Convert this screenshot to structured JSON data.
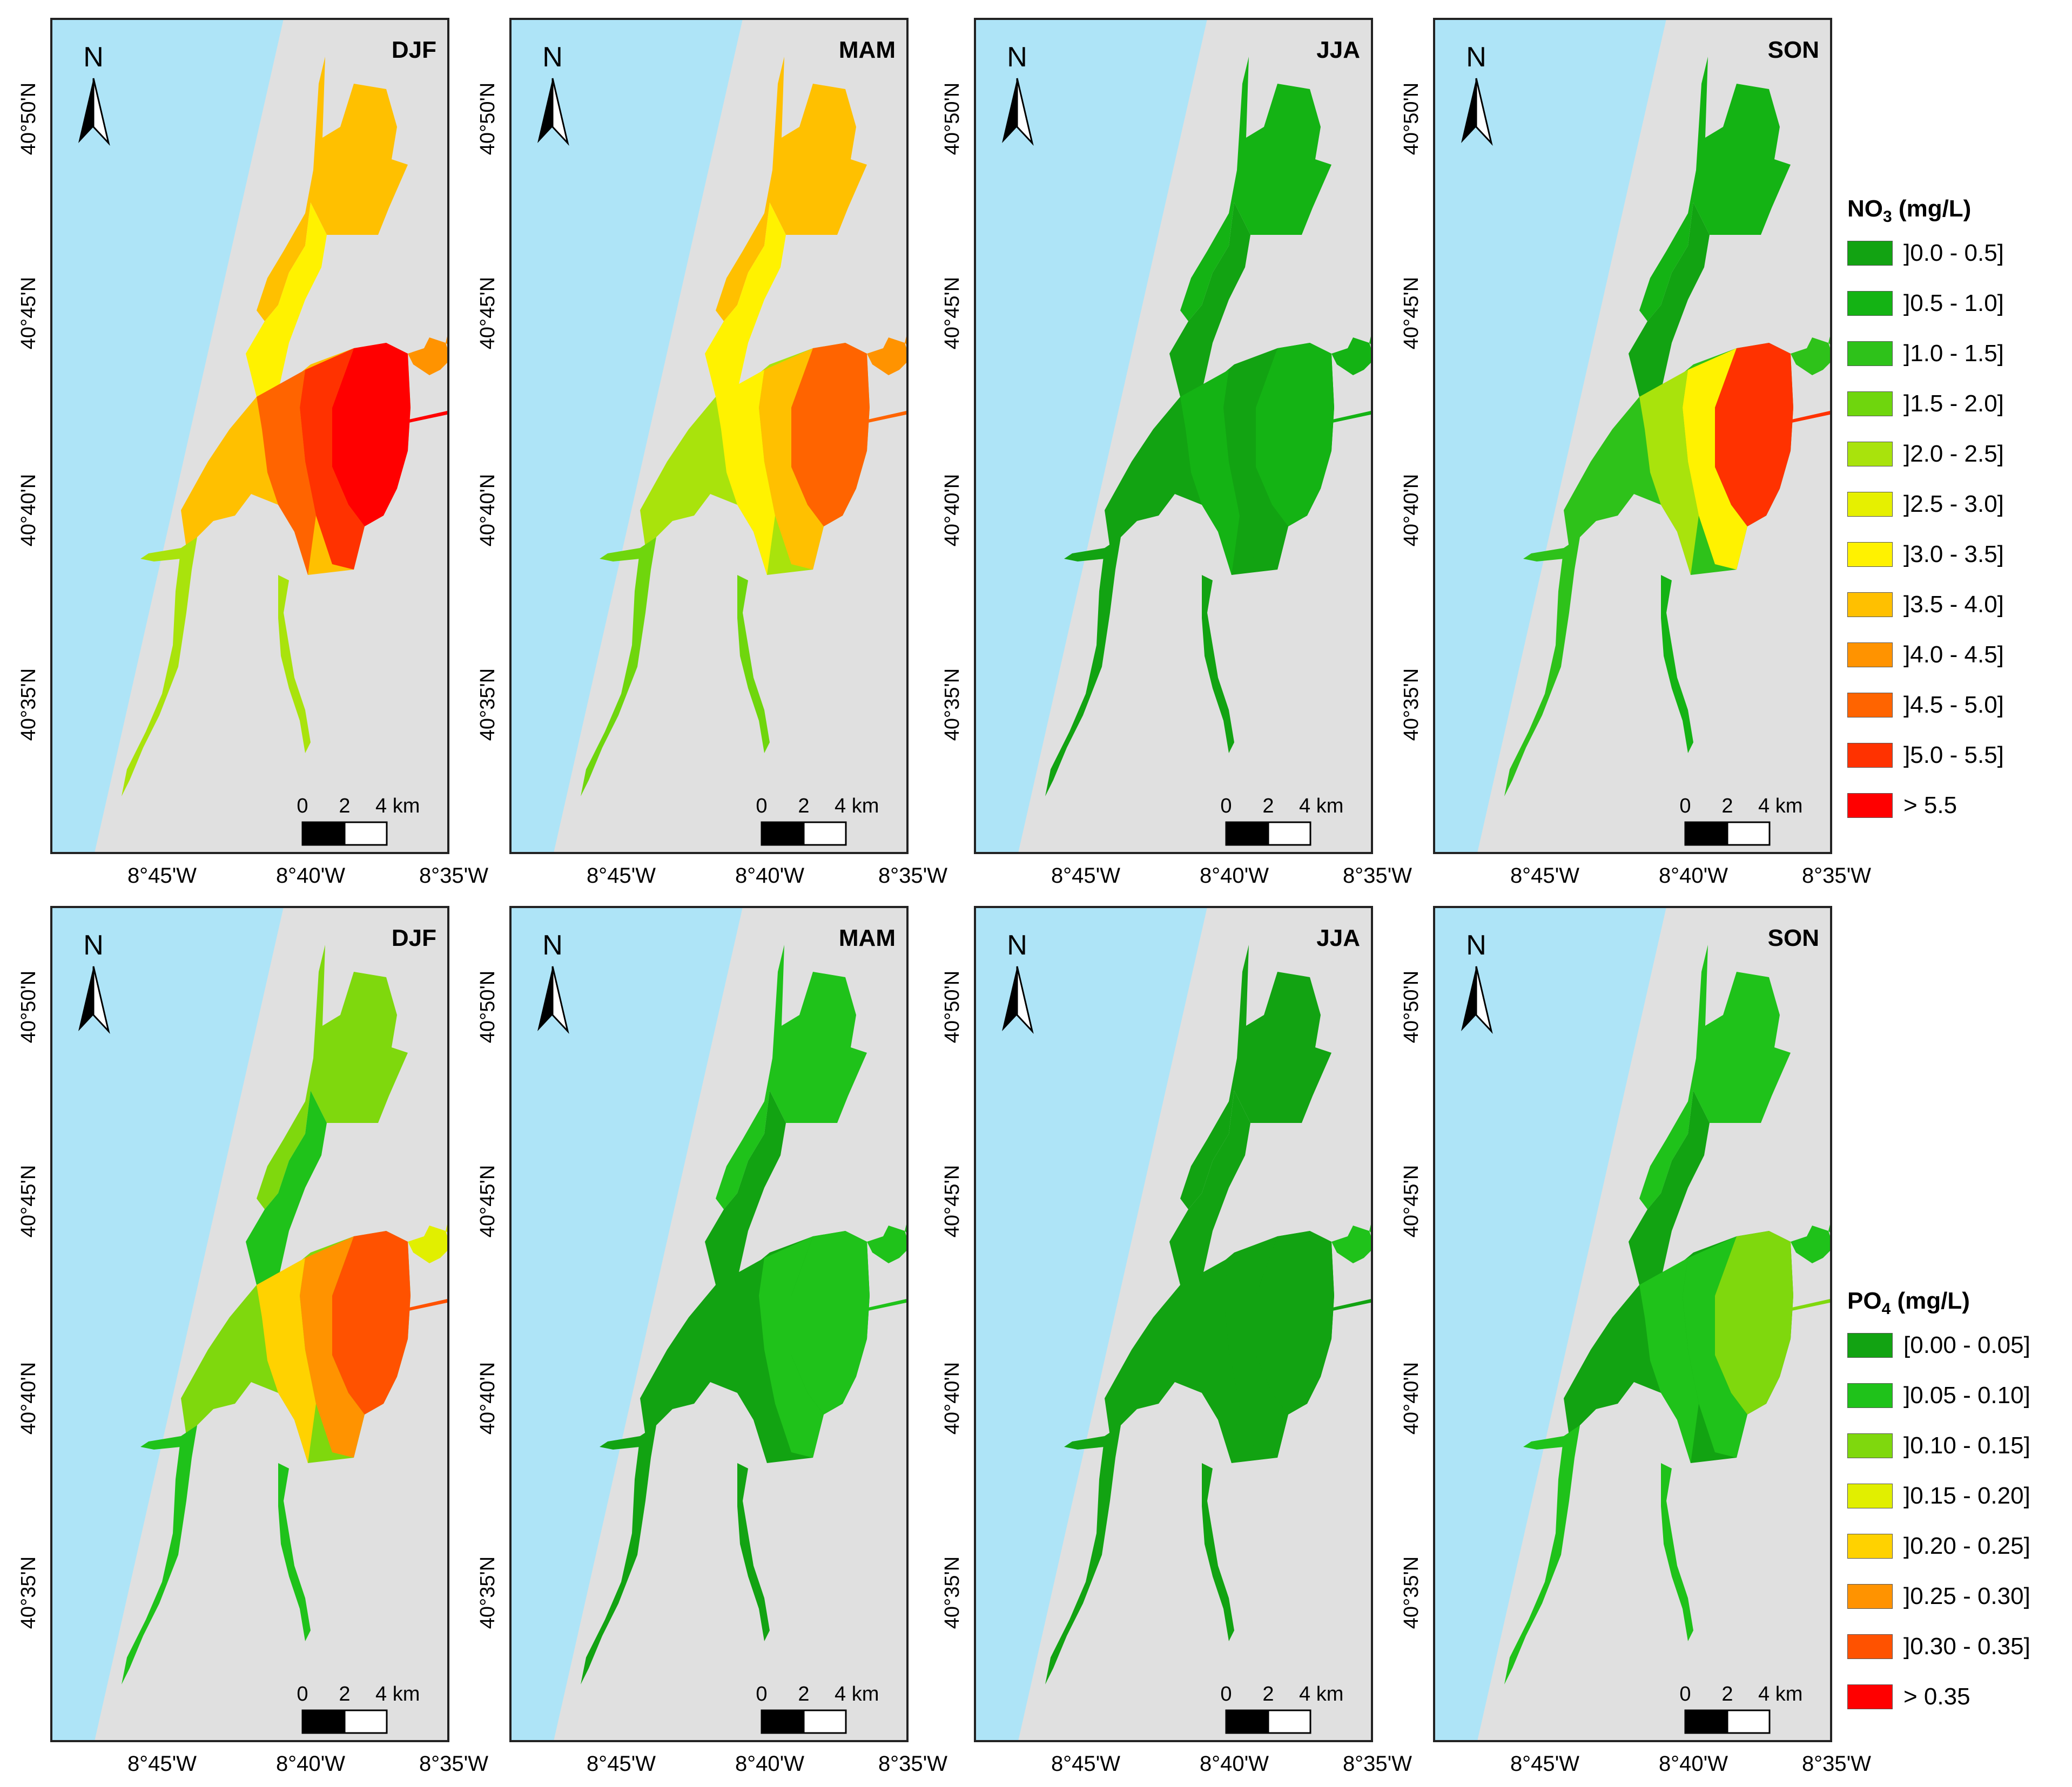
{
  "colors": {
    "sea": "#aee4f7",
    "land": "#e0e0e0",
    "frame": "#222222",
    "no3_scale": [
      "#12a312",
      "#14b314",
      "#2ec21a",
      "#6fd60d",
      "#a9e30c",
      "#e6f000",
      "#fff200",
      "#ffc000",
      "#ff9300",
      "#ff6400",
      "#ff3200",
      "#ff0000"
    ],
    "po4_scale": [
      "#12a312",
      "#1fc21a",
      "#7fd80d",
      "#e1ef00",
      "#ffd200",
      "#ff9300",
      "#ff5200",
      "#ff0000"
    ]
  },
  "map": {
    "north_label": "N",
    "scale_labels": [
      "0",
      "2",
      "4 km"
    ],
    "lat_ticks": [
      "40°50'N",
      "40°45'N",
      "40°40'N",
      "40°35'N"
    ],
    "lon_ticks": [
      "8°45'W",
      "8°40'W",
      "8°35'W"
    ]
  },
  "rows": [
    {
      "variable": "NO3",
      "panels": [
        {
          "season": "DJF",
          "north_zone_level": 7,
          "bay_levels": [
            11,
            10,
            9,
            7
          ],
          "south_level": 4,
          "east_level": 8,
          "lagoon_level": 4
        },
        {
          "season": "MAM",
          "north_zone_level": 7,
          "bay_levels": [
            9,
            7,
            6,
            4
          ],
          "south_level": 3,
          "east_level": 8,
          "lagoon_level": 3
        },
        {
          "season": "JJA",
          "north_zone_level": 1,
          "bay_levels": [
            1,
            0,
            1,
            0
          ],
          "south_level": 0,
          "east_level": 1,
          "lagoon_level": 0
        },
        {
          "season": "SON",
          "north_zone_level": 1,
          "bay_levels": [
            10,
            6,
            4,
            2
          ],
          "south_level": 1,
          "east_level": 2,
          "lagoon_level": 2
        }
      ]
    },
    {
      "variable": "PO4",
      "panels": [
        {
          "season": "DJF",
          "north_zone_level": 2,
          "bay_levels": [
            6,
            5,
            4,
            2
          ],
          "south_level": 1,
          "east_level": 3,
          "lagoon_level": 1
        },
        {
          "season": "MAM",
          "north_zone_level": 1,
          "bay_levels": [
            1,
            1,
            0,
            0
          ],
          "south_level": 0,
          "east_level": 1,
          "lagoon_level": 0
        },
        {
          "season": "JJA",
          "north_zone_level": 0,
          "bay_levels": [
            0,
            0,
            0,
            0
          ],
          "south_level": 0,
          "east_level": 1,
          "lagoon_level": 0
        },
        {
          "season": "SON",
          "north_zone_level": 1,
          "bay_levels": [
            2,
            1,
            1,
            0
          ],
          "south_level": 1,
          "east_level": 1,
          "lagoon_level": 1
        }
      ]
    }
  ],
  "legend_no3": {
    "title_main": "NO",
    "title_sub": "3",
    "title_unit": " (mg/L)",
    "items": [
      "]0.0 - 0.5]",
      "]0.5 - 1.0]",
      "]1.0 - 1.5]",
      "]1.5 - 2.0]",
      "]2.0 - 2.5]",
      "]2.5 - 3.0]",
      "]3.0 - 3.5]",
      "]3.5 - 4.0]",
      "]4.0 - 4.5]",
      "]4.5 - 5.0]",
      "]5.0 - 5.5]",
      "> 5.5"
    ]
  },
  "legend_po4": {
    "title_main": "PO",
    "title_sub": "4",
    "title_unit": " (mg/L)",
    "items": [
      "[0.00 - 0.05]",
      "]0.05 - 0.10]",
      "]0.10 - 0.15]",
      "]0.15 - 0.20]",
      "]0.20 - 0.25]",
      "]0.25 - 0.30]",
      "]0.30 - 0.35]",
      "> 0.35"
    ]
  }
}
